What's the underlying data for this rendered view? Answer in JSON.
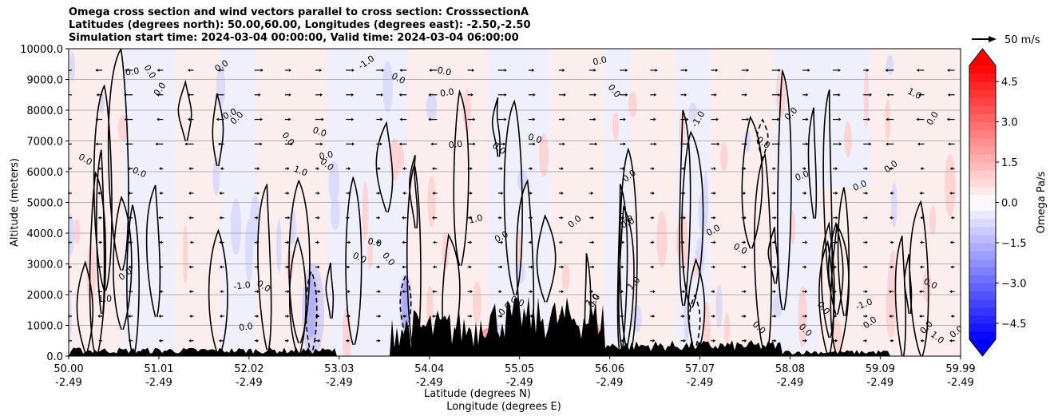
{
  "chart_data": {
    "type": "heatmap",
    "title_lines": [
      "Omega cross section and wind vectors parallel to cross section: CrosssectionA",
      "Latitudes (degrees north): 50.00,60.00, Longitudes (degrees east): -2.50,-2.50",
      "Simulation start time: 2024-03-04 00:00:00, Valid time: 2024-03-04 06:00:00"
    ],
    "ylabel": "Altitude (meters)",
    "xlabel_lines": [
      "Latitude (degrees N)",
      "Longitude (degrees E)"
    ],
    "ylim": [
      0,
      10000
    ],
    "xlim": [
      50.0,
      59.99
    ],
    "y_ticks": [
      0,
      1000,
      2000,
      3000,
      4000,
      5000,
      6000,
      7000,
      8000,
      9000,
      10000
    ],
    "y_tick_labels": [
      "0.0",
      "1000.0",
      "2000.0",
      "3000.0",
      "4000.0",
      "5000.0",
      "6000.0",
      "7000.0",
      "8000.0",
      "9000.0",
      "10000.0"
    ],
    "x_ticks": [
      {
        "lat": 50.0,
        "lat_label": "50.00",
        "lon_label": "-2.49"
      },
      {
        "lat": 51.01,
        "lat_label": "51.01",
        "lon_label": "-2.49"
      },
      {
        "lat": 52.02,
        "lat_label": "52.02",
        "lon_label": "-2.49"
      },
      {
        "lat": 53.03,
        "lat_label": "53.03",
        "lon_label": "-2.49"
      },
      {
        "lat": 54.04,
        "lat_label": "54.04",
        "lon_label": "-2.49"
      },
      {
        "lat": 55.05,
        "lat_label": "55.05",
        "lon_label": "-2.49"
      },
      {
        "lat": 56.06,
        "lat_label": "56.06",
        "lon_label": "-2.49"
      },
      {
        "lat": 57.07,
        "lat_label": "57.07",
        "lon_label": "-2.49"
      },
      {
        "lat": 58.08,
        "lat_label": "58.08",
        "lon_label": "-2.49"
      },
      {
        "lat": 59.09,
        "lat_label": "59.09",
        "lon_label": "-2.49"
      },
      {
        "lat": 59.99,
        "lat_label": "59.99",
        "lon_label": "-2.49"
      }
    ],
    "grid": "horizontal",
    "colorbar": {
      "label": "Omega Pa/s",
      "range": [
        -5.1,
        5.1
      ],
      "ticks": [
        -4.5,
        -3.0,
        -1.5,
        0.0,
        1.5,
        3.0,
        4.5
      ],
      "tick_labels": [
        "−4.5",
        "−3.0",
        "−1.5",
        "0.0",
        "1.5",
        "3.0",
        "4.5"
      ],
      "colormap": "bwr",
      "extend": "both"
    },
    "wind_reference": {
      "label": "50 m/s"
    },
    "contour_labels": [
      "0.0",
      "1.0",
      "-1.0"
    ],
    "colors": {
      "positive": "#ff0000",
      "negative": "#0000ff",
      "terrain": "#000000",
      "grid": "#b0b0b0"
    }
  }
}
